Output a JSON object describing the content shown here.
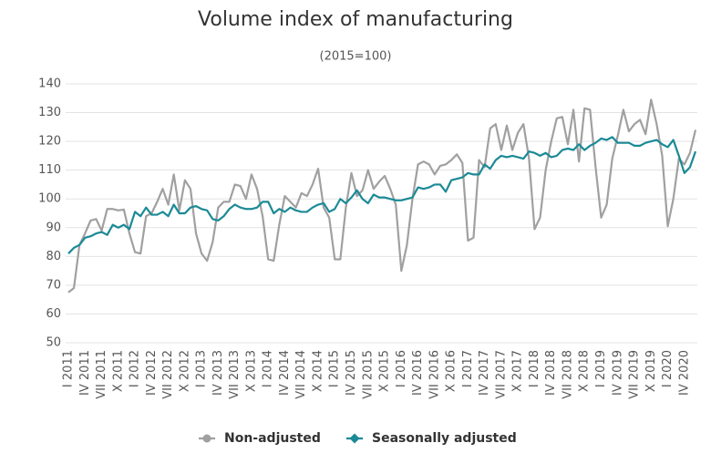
{
  "chart_data": {
    "type": "line",
    "title": "Volume index of manufacturing",
    "subtitle": "(2015=100)",
    "categories": [
      "I 2011",
      null,
      null,
      "IV 2011",
      null,
      null,
      "VII 2011",
      null,
      null,
      "X 2011",
      null,
      null,
      "I 2012",
      null,
      null,
      "IV 2012",
      null,
      null,
      "VII 2012",
      null,
      null,
      "X 2012",
      null,
      null,
      "I 2013",
      null,
      null,
      "IV 2013",
      null,
      null,
      "VII 2013",
      null,
      null,
      "X 2013",
      null,
      null,
      "I 2014",
      null,
      null,
      "IV 2014",
      null,
      null,
      "VII 2014",
      null,
      null,
      "X 2014",
      null,
      null,
      "I 2015",
      null,
      null,
      "IV 2015",
      null,
      null,
      "VII 2015",
      null,
      null,
      "X 2015",
      null,
      null,
      "I 2016",
      null,
      null,
      "IV 2016",
      null,
      null,
      "VII 2016",
      null,
      null,
      "X 2016",
      null,
      null,
      "I 2017",
      null,
      null,
      "IV 2017",
      null,
      null,
      "VII 2017",
      null,
      null,
      "X 2017",
      null,
      null,
      "I 2018",
      null,
      null,
      "IV 2018",
      null,
      null,
      "VII 2018",
      null,
      null,
      "X 2018",
      null,
      null,
      "I 2019",
      null,
      null,
      "IV 2019",
      null,
      null,
      "VII 2019",
      null,
      null,
      "X 2019",
      null,
      null,
      "I 2020",
      null,
      null,
      "IV 2020",
      null,
      null
    ],
    "series": [
      {
        "name": "Non-adjusted",
        "color": "#a0a0a0",
        "values": [
          67.5,
          69,
          84,
          88,
          92.5,
          93,
          89,
          96.5,
          96.5,
          96,
          96.3,
          88,
          81.5,
          81,
          94,
          95,
          99,
          103.5,
          98,
          108.5,
          96,
          106.5,
          103.5,
          88,
          81,
          78.5,
          85,
          97,
          99,
          99,
          105,
          104.5,
          100,
          108.5,
          103.5,
          94,
          79,
          78.5,
          91,
          101,
          99,
          97,
          102,
          101,
          105,
          110.5,
          97,
          93.5,
          79,
          79,
          97,
          109,
          101,
          103,
          110,
          103.5,
          106,
          108,
          103.5,
          98,
          75,
          84,
          100,
          112,
          113,
          112,
          108.5,
          111.5,
          112,
          113.5,
          115.5,
          112.5,
          85.5,
          86.5,
          113.5,
          111,
          124.5,
          126,
          117,
          125.5,
          117,
          123,
          126,
          114,
          89.5,
          93.5,
          110,
          120,
          128,
          128.5,
          119,
          131,
          113,
          131.5,
          131,
          111,
          93.5,
          98,
          114,
          122,
          131,
          123.5,
          126,
          127.5,
          122.5,
          134.5,
          126,
          115,
          90.5,
          100,
          114,
          112,
          116,
          124
        ]
      },
      {
        "name": "Seasonally adjusted",
        "color": "#1b8a96",
        "values": [
          81,
          83,
          84,
          86.5,
          87,
          88,
          88.5,
          87.5,
          91,
          90,
          91,
          89.5,
          95.5,
          94,
          97,
          94.5,
          94.5,
          95.5,
          94,
          98,
          95,
          95,
          97,
          97.5,
          96.5,
          96,
          93,
          92.5,
          94,
          96.5,
          98,
          97,
          96.5,
          96.5,
          97,
          99,
          99,
          95,
          96.5,
          95.5,
          97,
          96,
          95.5,
          95.5,
          97,
          98,
          98.5,
          95.5,
          96.5,
          100,
          98.5,
          100.5,
          103,
          100,
          98.5,
          101.5,
          100.5,
          100.5,
          100,
          99.5,
          99.5,
          100,
          100.5,
          104,
          103.5,
          104,
          105,
          105,
          102.5,
          106.5,
          107,
          107.5,
          109,
          108.5,
          108.5,
          112,
          110.5,
          113.5,
          115,
          114.5,
          115,
          114.5,
          114,
          116.5,
          116,
          115,
          116,
          114.5,
          115,
          117,
          117.5,
          117,
          119,
          117,
          118.5,
          119.5,
          121,
          120.5,
          121.5,
          119.5,
          119.5,
          119.5,
          118.5,
          118.5,
          119.5,
          120,
          120.5,
          119,
          118,
          120.5,
          115,
          109,
          111,
          116.5
        ]
      }
    ],
    "ylim": [
      50,
      140
    ],
    "yticks": [
      50,
      60,
      70,
      80,
      90,
      100,
      110,
      120,
      130,
      140
    ],
    "grid": true,
    "legend": "bottom"
  }
}
